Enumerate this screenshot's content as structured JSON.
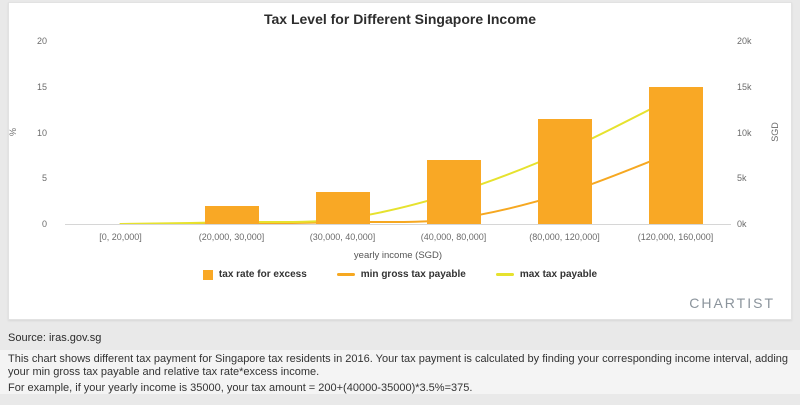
{
  "chart_data": {
    "type": "bar",
    "title": "Tax Level for Different Singapore Income",
    "categories": [
      "[0, 20,000]",
      "(20,000, 30,000]",
      "(30,000, 40,000]",
      "(40,000, 80,000]",
      "(80,000, 120,000]",
      "(120,000, 160,000]"
    ],
    "series": [
      {
        "name": "tax rate for excess",
        "type": "bar",
        "axis": "left",
        "color": "#f9a825",
        "values": [
          0,
          2,
          3.5,
          7,
          11.5,
          15
        ]
      },
      {
        "name": "min gross tax payable",
        "type": "line",
        "axis": "right",
        "color": "#f6a821",
        "values": [
          0,
          0,
          200,
          550,
          3350,
          7950
        ]
      },
      {
        "name": "max tax payable",
        "type": "line",
        "axis": "right",
        "color": "#e6e22e",
        "values": [
          0,
          200,
          550,
          3350,
          7950,
          13950
        ]
      }
    ],
    "xlabel": "yearly income (SGD)",
    "left_axis": {
      "label": "%",
      "ticks": [
        0,
        5,
        10,
        15,
        20
      ],
      "max": 20
    },
    "right_axis": {
      "label": "SGD",
      "ticks": [
        "0k",
        "5k",
        "10k",
        "15k",
        "20k"
      ],
      "max": 20000
    },
    "grid": "baseline-only",
    "legend_position": "bottom"
  },
  "branding": "CHARTIST",
  "footer": {
    "source": "Source: iras.gov.sg",
    "description": "This chart shows different tax payment for Singapore tax residents in 2016. Your tax payment is calculated by finding your corresponding income interval, adding your min gross tax payable and relative tax rate*excess income.",
    "example": "For example, if your yearly income is 35000, your tax amount = 200+(40000-35000)*3.5%=375."
  }
}
